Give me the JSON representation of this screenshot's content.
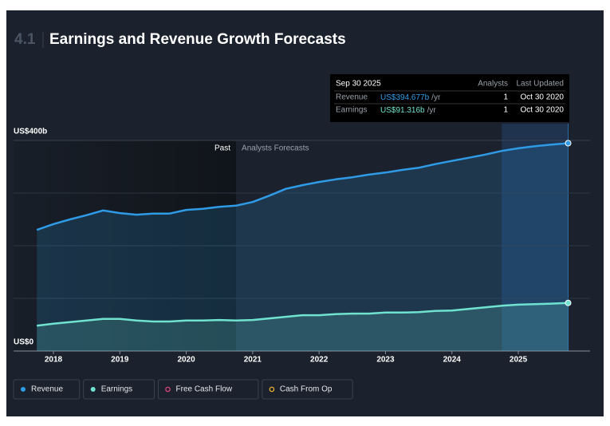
{
  "chart_data": {
    "type": "line",
    "section": "4.1",
    "title": "Earnings and Revenue Growth Forecasts",
    "x": [
      2017.75,
      2018,
      2018.25,
      2018.5,
      2018.75,
      2019,
      2019.25,
      2019.5,
      2019.75,
      2020,
      2020.25,
      2020.5,
      2020.75,
      2021,
      2021.25,
      2021.5,
      2021.75,
      2022,
      2022.25,
      2022.5,
      2022.75,
      2023,
      2023.25,
      2023.5,
      2023.75,
      2024,
      2024.25,
      2024.5,
      2024.75,
      2025,
      2025.25,
      2025.5,
      2025.75
    ],
    "series": [
      {
        "name": "Revenue",
        "color": "#2f9be6",
        "values": [
          230,
          241,
          250,
          258,
          267,
          262,
          259,
          261,
          261,
          268,
          270,
          274,
          276,
          283,
          295,
          308,
          315,
          321,
          326,
          330,
          335,
          339,
          344,
          348,
          355,
          361,
          367,
          373,
          380,
          385,
          389,
          392,
          394.677
        ]
      },
      {
        "name": "Earnings",
        "color": "#6fe3d0",
        "values": [
          48,
          52,
          55,
          58,
          61,
          61,
          58,
          56,
          56,
          58,
          58,
          59,
          58,
          59,
          62,
          65,
          68,
          68,
          70,
          71,
          71,
          73,
          73,
          74,
          76,
          77,
          80,
          83,
          86,
          88,
          89,
          90,
          91.316
        ]
      }
    ],
    "inactive_series": [
      {
        "name": "Free Cash Flow",
        "color": "#e0457b"
      },
      {
        "name": "Cash From Op",
        "color": "#f0b429"
      }
    ],
    "xlim": [
      2017.4,
      2026.08
    ],
    "xticks": [
      2018,
      2019,
      2020,
      2021,
      2022,
      2023,
      2024,
      2025
    ],
    "ylim": [
      0,
      400
    ],
    "yticks": [
      {
        "value": 0,
        "label": "US$0"
      },
      {
        "value": 400,
        "label": "US$400b"
      }
    ],
    "ygrid": [
      100,
      200,
      300
    ],
    "forecast_start": 2020.75,
    "past_label": "Past",
    "forecast_label": "Analysts Forecasts",
    "highlight": [
      2024.75,
      2025.75
    ],
    "tooltip": {
      "date": "Sep 30 2025",
      "columns": [
        "Analysts",
        "Last Updated"
      ],
      "rows": [
        {
          "name": "Revenue",
          "value_label": "US$394.677b",
          "unit": "/yr",
          "analysts": 1,
          "updated": "Oct 30 2020"
        },
        {
          "name": "Earnings",
          "value_label": "US$91.316b",
          "unit": "/yr",
          "analysts": 1,
          "updated": "Oct 30 2020"
        }
      ]
    }
  }
}
